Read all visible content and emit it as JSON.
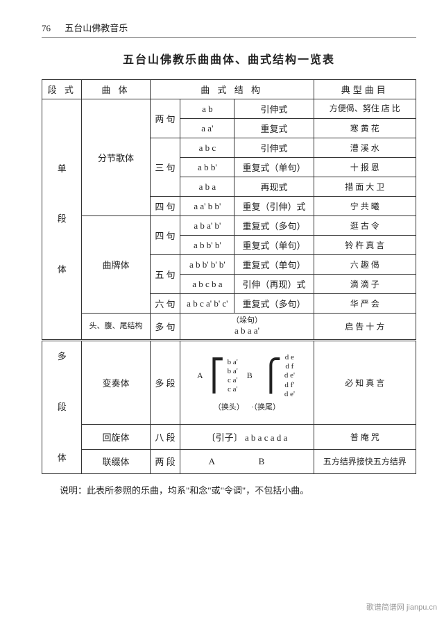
{
  "header": {
    "page_number": "76",
    "running_title": "五台山佛教音乐"
  },
  "title": "五台山佛教乐曲曲体、曲式结构一览表",
  "columns": {
    "c1": "段 式",
    "c2": "曲 体",
    "c3": "曲  式  结  构",
    "c4": "典型曲目"
  },
  "single": {
    "section_label": "单\n\n段\n\n体",
    "group1_label": "分节歌体",
    "group2_label": "曲牌体",
    "group3_label": "头、腹、尾结构",
    "rows": [
      {
        "sub": "两 句",
        "code": "a   b",
        "type": "引伸式",
        "ex": "方便偈、努住  店  比"
      },
      {
        "sub": "",
        "code": "a   a'",
        "type": "重复式",
        "ex": "寒  黄  花"
      },
      {
        "sub": "三 句",
        "code": "a b c",
        "type": "引伸式",
        "ex": "漕  溪  水"
      },
      {
        "sub": "",
        "code": "a b b'",
        "type": "重复式（单句）",
        "ex": "十  报  恩"
      },
      {
        "sub": "",
        "code": "a b a",
        "type": "再现式",
        "ex": "措 面 大 卫"
      },
      {
        "sub": "四 句",
        "code": "a a' b b'",
        "type": "重复（引伸）式",
        "ex": "宁  共  曦"
      },
      {
        "sub": "四 句",
        "code": "a b a' b'",
        "type": "重复式（多句）",
        "ex": "逛  古  令"
      },
      {
        "sub": "",
        "code": "a b b' b'",
        "type": "重复式（单句）",
        "ex": "铃 杵 真 言"
      },
      {
        "sub": "五 句",
        "code": "a b b' b' b'",
        "type": "重复式（单句）",
        "ex": "六  趣  偈"
      },
      {
        "sub": "",
        "code": "a b c b a",
        "type": "引伸（再现）式",
        "ex": "滴  滴  子"
      },
      {
        "sub": "六 句",
        "code": "a b c a' b' c'",
        "type": "重复式（多句）",
        "ex": "华  严  会"
      },
      {
        "sub": "多 句",
        "code_top": "（垛句）",
        "code": "a b a   a'",
        "type": "",
        "ex": "启 告 十 方"
      }
    ]
  },
  "multi": {
    "section_label": "多\n\n段\n\n体",
    "rows": [
      {
        "body": "变奏体",
        "sub": "多 段",
        "matrixA_label": "A",
        "matrixA": [
          "b a'",
          "b a'",
          "c a'",
          "c a'"
        ],
        "matrixB_label": "B",
        "matrixB": [
          "d e",
          "d f",
          "d e'",
          "d f'",
          "d e'"
        ],
        "foot_left": "（换头）",
        "foot_right": "·（换尾）",
        "ex": "必 知 真 言"
      },
      {
        "body": "回旋体",
        "sub": "八 段",
        "code": "〔引子〕  a b a c a d a",
        "ex": "普  庵  咒"
      },
      {
        "body": "联缀体",
        "sub": "两 段",
        "code": "A        B",
        "ex": "五方结界接快五方结界"
      }
    ]
  },
  "note": "说明：此表所参照的乐曲，均系\"和念\"或\"令调\"，不包括小曲。",
  "watermark": "歌谱简谱网  jianpu.cn"
}
